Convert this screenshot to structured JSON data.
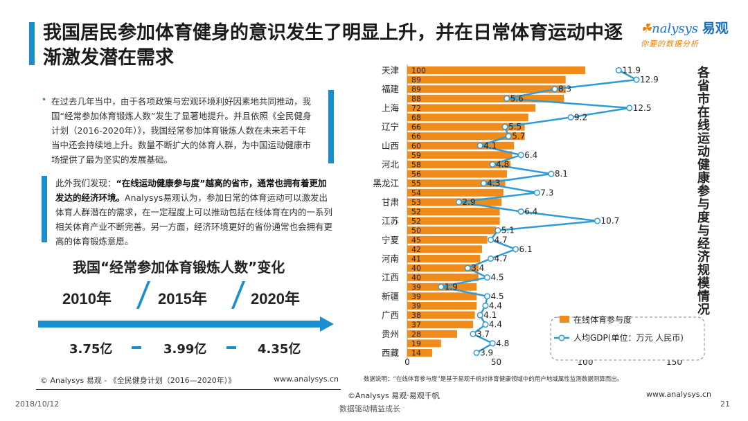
{
  "header": {
    "title": "我国居民参加体育健身的意识发生了明显上升，并在日常体育运动中逐渐激发潜在需求",
    "logo_main": "nalysys",
    "logo_brand": "易观",
    "logo_sub": "你要的数据分析"
  },
  "left": {
    "para1": "在过去几年当中，由于各项政策与宏观环境利好因素地共同推动，我国“经常参加体育锻炼人数”发生了显著地提升。并且依照《全民健身计划（2016-2020年）》，我国经常参加体育锻炼人数在未来若干年当中还会持续地上升。数量不断扩大的体育人群，为中国运动健康市场提供了最为坚实的发展基础。",
    "para2_lead": "此外我们发现：",
    "para2_bold": "“在线运动健康参与度”越高的省市，通常也拥有着更加发达的经济环境。",
    "para2_rest": "Analysys易观认为，参加日常的体育运动可以激发出体育人群潜在的需求，在一定程度上可以推动包括在线体育在内的一系列相关体育产业不断完善。另一方面，经济环境更好的省份通常也会拥有更高的体育锻炼意愿。",
    "change_title": "我国“经常参加体育锻炼人数”变化",
    "years": [
      "2010年",
      "2015年",
      "2020年"
    ],
    "values": [
      "3.75亿",
      "3.99亿",
      "4.35亿"
    ],
    "source": "© Analysys 易观 - 《全民健身计划（2016—2020年）》",
    "source_url": "www.analysys.cn"
  },
  "chart_data": {
    "type": "bar",
    "title": "各省市在线运动健康参与度与经济规模情况",
    "categories": [
      "天津",
      "",
      "福建",
      "",
      "上海",
      "",
      "辽宁",
      "",
      "山西",
      "",
      "河北",
      "",
      "黑龙江",
      "",
      "甘肃",
      "",
      "江苏",
      "",
      "宁夏",
      "",
      "河南",
      "",
      "江西",
      "",
      "新疆",
      "",
      "广西",
      "",
      "贵州",
      "",
      "西藏"
    ],
    "series": [
      {
        "name": "在线体育参与度",
        "values": [
          100,
          89,
          89,
          88,
          72,
          68,
          66,
          66,
          60,
          59,
          58,
          56,
          55,
          54,
          53,
          52,
          52,
          50,
          45,
          42,
          41,
          40,
          40,
          39,
          39,
          39,
          38,
          37,
          28,
          19,
          14
        ]
      },
      {
        "name": "人均GDP(单位：万元 人民币)",
        "values": [
          11.9,
          12.9,
          8.3,
          5.6,
          12.5,
          9.2,
          5.5,
          5.7,
          4.1,
          6.4,
          4.8,
          8.1,
          4.3,
          7.3,
          2.9,
          6.4,
          10.7,
          5.1,
          4.7,
          6.1,
          4.7,
          3.4,
          4.5,
          1.9,
          4.5,
          4.4,
          4.1,
          4.4,
          3.7,
          4.8,
          3.9
        ]
      }
    ],
    "xticks": [
      "0",
      "50",
      "100",
      "150"
    ],
    "xlim": [
      0,
      150
    ],
    "legend_bar": "在线体育参与度",
    "legend_line": "人均GDP(单位：万元 人民币)",
    "note": "数据说明：“在线体育参与度”是基于易观千帆对体育健康领域中的用户地域属性监测数据测算而出。",
    "colors": {
      "bar": "#f08c1a",
      "line": "#2f9bd6"
    }
  },
  "footer": {
    "date": "2018/10/12",
    "center": "©Analysys 易观·易观千帆",
    "slogan": "数据驱动精益成长",
    "url": "www.analysys.cn",
    "page": "21"
  }
}
